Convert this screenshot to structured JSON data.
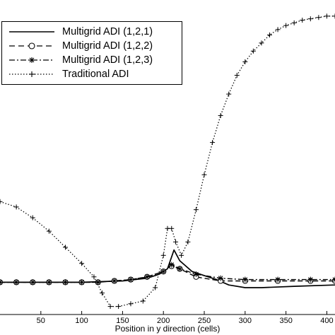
{
  "chart_data": {
    "type": "line",
    "title": "",
    "xlabel": "Position in y direction (cells)",
    "ylabel": "",
    "xlim": [
      0,
      410
    ],
    "ylim": [
      -0.12,
      1.05
    ],
    "x_ticks": [
      50,
      100,
      150,
      200,
      250,
      300,
      350,
      400
    ],
    "x_tick_labels": [
      "50",
      "100",
      "150",
      "200",
      "250",
      "300",
      "350",
      "400"
    ],
    "grid": false,
    "legend_position": "top-left",
    "series": [
      {
        "name": "Multigrid ADI (1,2,1)",
        "style": "solid",
        "marker": "none",
        "color": "#000000",
        "x": [
          0,
          50,
          100,
          150,
          180,
          195,
          205,
          213,
          220,
          235,
          250,
          265,
          280,
          300,
          320,
          360,
          410
        ],
        "y": [
          0.0,
          0.0,
          0.0,
          0.005,
          0.015,
          0.03,
          0.05,
          0.12,
          0.08,
          0.04,
          0.025,
          0.01,
          -0.01,
          -0.02,
          -0.02,
          -0.015,
          -0.01
        ]
      },
      {
        "name": "Multigrid ADI (1,2,2)",
        "style": "dashed",
        "marker": "circle",
        "color": "#000000",
        "x": [
          0,
          20,
          40,
          60,
          80,
          100,
          120,
          140,
          160,
          180,
          200,
          210,
          220,
          240,
          270,
          300,
          340,
          380,
          410
        ],
        "y": [
          0.0,
          0.0,
          0.0,
          0.0,
          0.0,
          0.0,
          0.0,
          0.005,
          0.01,
          0.02,
          0.04,
          0.06,
          0.05,
          0.02,
          0.005,
          0.005,
          0.005,
          0.005,
          0.005
        ]
      },
      {
        "name": "Multigrid ADI (1,2,3)",
        "style": "dashdot",
        "marker": "star",
        "color": "#000000",
        "x": [
          0,
          20,
          40,
          60,
          80,
          100,
          120,
          140,
          160,
          180,
          200,
          210,
          220,
          240,
          270,
          300,
          340,
          380,
          410
        ],
        "y": [
          0.0,
          0.0,
          0.0,
          0.0,
          0.0,
          0.0,
          0.0,
          0.005,
          0.01,
          0.02,
          0.04,
          0.065,
          0.05,
          0.03,
          0.015,
          0.01,
          0.01,
          0.01,
          0.01
        ]
      },
      {
        "name": "Traditional ADI",
        "style": "dotted",
        "marker": "plus",
        "color": "#000000",
        "x": [
          0,
          20,
          40,
          60,
          80,
          100,
          115,
          125,
          135,
          145,
          160,
          175,
          190,
          200,
          205,
          210,
          215,
          222,
          230,
          240,
          250,
          260,
          270,
          280,
          290,
          300,
          310,
          320,
          330,
          340,
          350,
          360,
          370,
          380,
          390,
          400,
          410
        ],
        "y": [
          0.3,
          0.28,
          0.24,
          0.19,
          0.13,
          0.07,
          0.02,
          -0.04,
          -0.09,
          -0.09,
          -0.08,
          -0.07,
          -0.02,
          0.1,
          0.2,
          0.2,
          0.15,
          0.1,
          0.15,
          0.27,
          0.4,
          0.52,
          0.62,
          0.7,
          0.77,
          0.82,
          0.86,
          0.89,
          0.92,
          0.94,
          0.955,
          0.965,
          0.975,
          0.98,
          0.985,
          0.99,
          0.99
        ]
      }
    ]
  }
}
